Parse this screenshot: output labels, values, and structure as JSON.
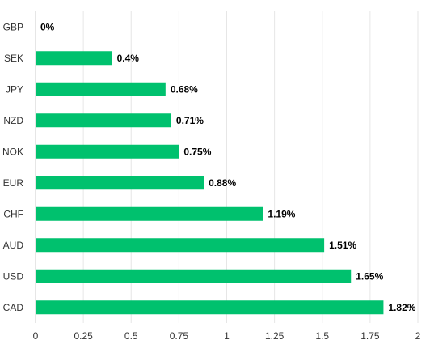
{
  "chart_data": {
    "type": "bar",
    "orientation": "horizontal",
    "categories": [
      "GBP",
      "SEK",
      "JPY",
      "NZD",
      "NOK",
      "EUR",
      "CHF",
      "AUD",
      "USD",
      "CAD"
    ],
    "values": [
      0,
      0.4,
      0.68,
      0.71,
      0.75,
      0.88,
      1.19,
      1.51,
      1.65,
      1.82
    ],
    "value_labels": [
      "0%",
      "0.4%",
      "0.68%",
      "0.71%",
      "0.75%",
      "0.88%",
      "1.19%",
      "1.51%",
      "1.65%",
      "1.82%"
    ],
    "xlim": [
      0,
      2
    ],
    "x_ticks": [
      "0",
      "0.25",
      "0.5",
      "0.75",
      "1",
      "1.25",
      "1.5",
      "1.75",
      "2"
    ],
    "title": "",
    "xlabel": "",
    "ylabel": "",
    "grid": true,
    "legend": "none",
    "bar_color": "#00c16e"
  }
}
